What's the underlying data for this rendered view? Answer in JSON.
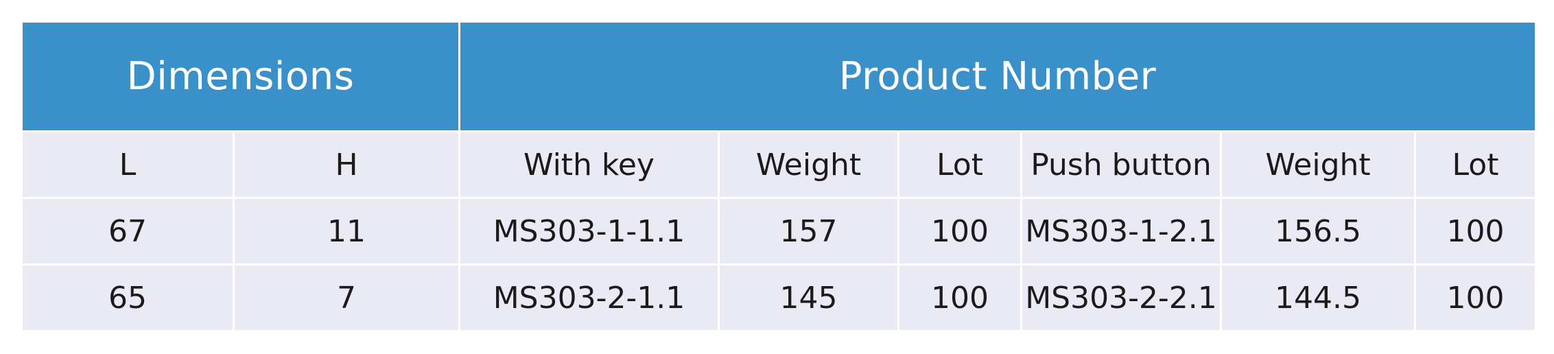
{
  "table": {
    "header": {
      "dimensions": "Dimensions",
      "product_number": "Product Number"
    },
    "subheaders": [
      "L",
      "H",
      "With key",
      "Weight",
      "Lot",
      "Push button",
      "Weight",
      "Lot"
    ],
    "rows": [
      [
        "67",
        "11",
        "MS303-1-1.1",
        "157",
        "100",
        "MS303-1-2.1",
        "156.5",
        "100"
      ],
      [
        "65",
        "7",
        "MS303-2-1.1",
        "145",
        "100",
        "MS303-2-2.1",
        "144.5",
        "100"
      ]
    ]
  },
  "colors": {
    "header_bg": "#3A90C8",
    "header_text": "#FFFFFF",
    "row_bg": "#E9EAF4",
    "body_text": "#1B1B1B",
    "gridline": "#FFFFFF"
  }
}
